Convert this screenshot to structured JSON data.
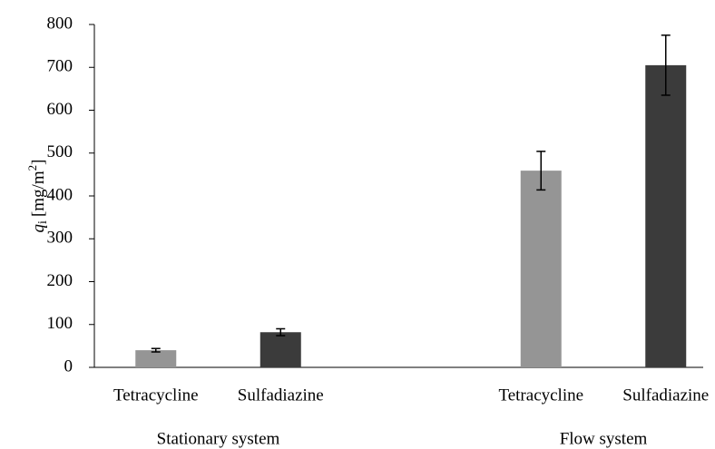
{
  "chart_data": {
    "type": "bar",
    "y_label": {
      "symbol": "q",
      "subscript": "i",
      "unit": "[mg/m",
      "superscript": "2",
      "close": "]"
    },
    "categories": [
      "Tetracycline",
      "Sulfadiazine",
      null,
      "Tetracycline",
      "Sulfadiazine"
    ],
    "group_labels": [
      "Stationary system",
      "Flow system"
    ],
    "values": [
      40,
      82,
      null,
      459,
      705
    ],
    "errors": [
      4,
      8,
      null,
      45,
      70
    ],
    "colors": [
      "#959595",
      "#3b3b3b",
      null,
      "#959595",
      "#3b3b3b"
    ],
    "ylim": [
      0,
      800
    ],
    "yticks": [
      0,
      100,
      200,
      300,
      400,
      500,
      600,
      700,
      800
    ],
    "grid": false
  }
}
